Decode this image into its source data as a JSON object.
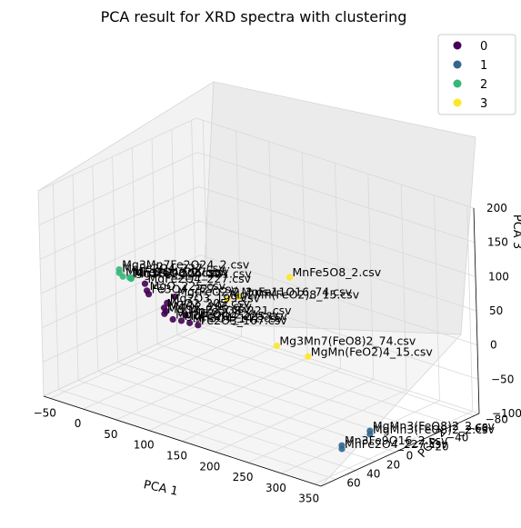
{
  "chart_data": {
    "type": "scatter",
    "projection": "3d",
    "title": "PCA result for XRD spectra with clustering",
    "xlabel": "PCA 1",
    "ylabel": "PCA 2",
    "zlabel": "PCA 3",
    "xticks": [
      "−50",
      "0",
      "50",
      "100",
      "150",
      "200",
      "250",
      "300",
      "350"
    ],
    "yticks": [
      "−80",
      "−60",
      "−40",
      "−20",
      "0",
      "20",
      "40",
      "60"
    ],
    "zticks": [
      "−100",
      "−50",
      "0",
      "50",
      "100",
      "150",
      "200"
    ],
    "legend_position": "top-right",
    "grid": true,
    "series": [
      {
        "name": "0",
        "color": "#440154"
      },
      {
        "name": "1",
        "color": "#31688e"
      },
      {
        "name": "2",
        "color": "#35b779"
      },
      {
        "name": "3",
        "color": "#fde725"
      }
    ],
    "points": [
      {
        "label": "MnFe5O8_2.csv",
        "cluster": 3,
        "x": 290,
        "y": 55,
        "z": 170
      },
      {
        "label": "MnFe11O16_74.csv",
        "cluster": 3,
        "x": 135,
        "y": 5,
        "z": 60
      },
      {
        "label": "Mg2Mn(FeO2)8_15.csv",
        "cluster": 3,
        "x": 110,
        "y": 0,
        "z": 45
      },
      {
        "label": "Mg3Mn7(FeO8)2_74.csv",
        "cluster": 3,
        "x": 130,
        "y": -35,
        "z": -40
      },
      {
        "label": "MgMn(FeO2)4_15.csv",
        "cluster": 3,
        "x": 185,
        "y": -30,
        "z": -35
      },
      {
        "label": "Mn3Fe9O16_2.csv",
        "cluster": 1,
        "x": 340,
        "y": 40,
        "z": -70
      },
      {
        "label": "MnFe2O4_227.csv",
        "cluster": 1,
        "x": 340,
        "y": 40,
        "z": -75
      },
      {
        "label": "MgMn3(FeO8)2_2.csv",
        "cluster": 1,
        "x": 330,
        "y": 5,
        "z": -75
      },
      {
        "label": "MgMn3(FeO8)2_2.csv",
        "cluster": 1,
        "x": 330,
        "y": 5,
        "z": -80
      },
      {
        "label": "Mg3Mn7Fe2O24_2.csv",
        "cluster": 2,
        "x": 30,
        "y": 55,
        "z": 100
      },
      {
        "label": "MnFe2O4_227.csv",
        "cluster": 2,
        "x": 30,
        "y": 55,
        "z": 95
      },
      {
        "label": "MgFe2O4_227.csv",
        "cluster": 2,
        "x": 20,
        "y": 45,
        "z": 80
      },
      {
        "label": "Mg3Fe2O24_221.csv",
        "cluster": 2,
        "x": 25,
        "y": 40,
        "z": 75
      },
      {
        "label": "Mn3FeO8_2.csv",
        "cluster": 2,
        "x": 15,
        "y": 35,
        "z": 70
      },
      {
        "label": "Mn2O3_206.csv",
        "cluster": 2,
        "x": 10,
        "y": 30,
        "z": 65
      },
      {
        "label": "MgFe2O4_227.csv",
        "cluster": 0,
        "x": 0,
        "y": 10,
        "z": 40
      },
      {
        "label": "Mg(FeO2)2_2.csv",
        "cluster": 0,
        "x": 45,
        "y": 10,
        "z": 35
      },
      {
        "label": "MgO_225.csv",
        "cluster": 0,
        "x": -5,
        "y": 5,
        "z": 25
      },
      {
        "label": "Fe3O4_227.csv",
        "cluster": 0,
        "x": -10,
        "y": 0,
        "z": 15
      },
      {
        "label": "Mg2O3_199.csv",
        "cluster": 0,
        "x": 10,
        "y": -5,
        "z": 5
      },
      {
        "label": "MnFe5O8_221.csv",
        "cluster": 0,
        "x": 30,
        "y": -10,
        "z": -10
      },
      {
        "label": "MgO2_205.csv",
        "cluster": 0,
        "x": -10,
        "y": -15,
        "z": -15
      },
      {
        "label": "MgO2_205.csv",
        "cluster": 0,
        "x": -15,
        "y": -20,
        "z": -25
      },
      {
        "label": "MgO2_225.csv",
        "cluster": 0,
        "x": -25,
        "y": -25,
        "z": -35
      },
      {
        "label": "Mg2FeO4_227.csv",
        "cluster": 0,
        "x": -20,
        "y": -30,
        "z": -45
      },
      {
        "label": "MgFe2O4_225.csv",
        "cluster": 0,
        "x": -30,
        "y": -45,
        "z": -60
      },
      {
        "label": "Mn3O4_141.csv",
        "cluster": 0,
        "x": -25,
        "y": -50,
        "z": -65
      },
      {
        "label": "Fe2O3_167.csv",
        "cluster": 0,
        "x": -20,
        "y": -55,
        "z": -70
      }
    ]
  }
}
